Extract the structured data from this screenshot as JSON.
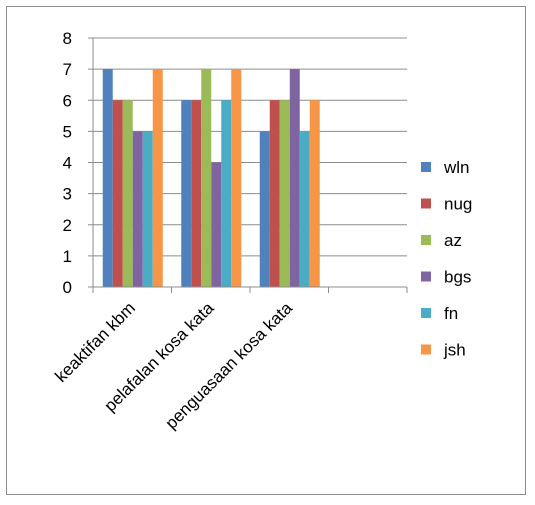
{
  "chart_data": {
    "type": "bar",
    "categories": [
      "keaktifan kbm",
      "pelafalan kosa kata",
      "penguasaan kosa kata",
      ""
    ],
    "series": [
      {
        "name": "wln",
        "color": "#4F81BD",
        "values": [
          7,
          6,
          5,
          null
        ]
      },
      {
        "name": "nug",
        "color": "#C0504D",
        "values": [
          6,
          6,
          6,
          null
        ]
      },
      {
        "name": "az",
        "color": "#9BBB59",
        "values": [
          6,
          7,
          6,
          null
        ]
      },
      {
        "name": "bgs",
        "color": "#8064A2",
        "values": [
          5,
          4,
          7,
          null
        ]
      },
      {
        "name": "fn",
        "color": "#4BACC6",
        "values": [
          5,
          6,
          5,
          null
        ]
      },
      {
        "name": "jsh",
        "color": "#F79646",
        "values": [
          7,
          7,
          6,
          null
        ]
      }
    ],
    "yticks": [
      "0",
      "1",
      "2",
      "3",
      "4",
      "5",
      "6",
      "7",
      "8"
    ],
    "ylim": [
      0,
      8
    ],
    "grid": true,
    "legend_position": "right"
  }
}
